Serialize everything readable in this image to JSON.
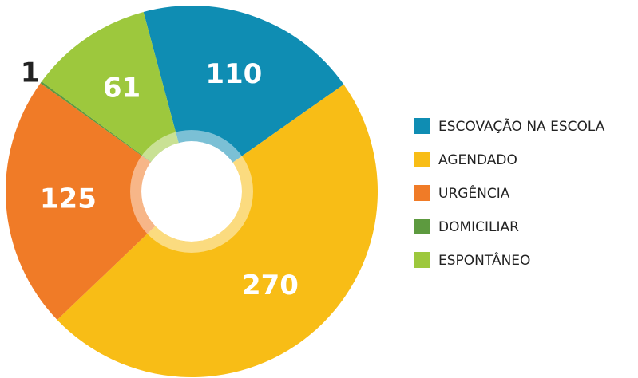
{
  "chart_data": {
    "type": "donut",
    "categories": [
      "ESCOVAÇÃO NA ESCOLA",
      "AGENDADO",
      "URGÊNCIA",
      "DOMICILIAR",
      "ESPONTÂNEO"
    ],
    "values": [
      110,
      270,
      125,
      1,
      61
    ],
    "colors": [
      "#0f8db3",
      "#f8bd16",
      "#f07b27",
      "#5d9a3f",
      "#9dc83d"
    ],
    "legend": "right"
  }
}
